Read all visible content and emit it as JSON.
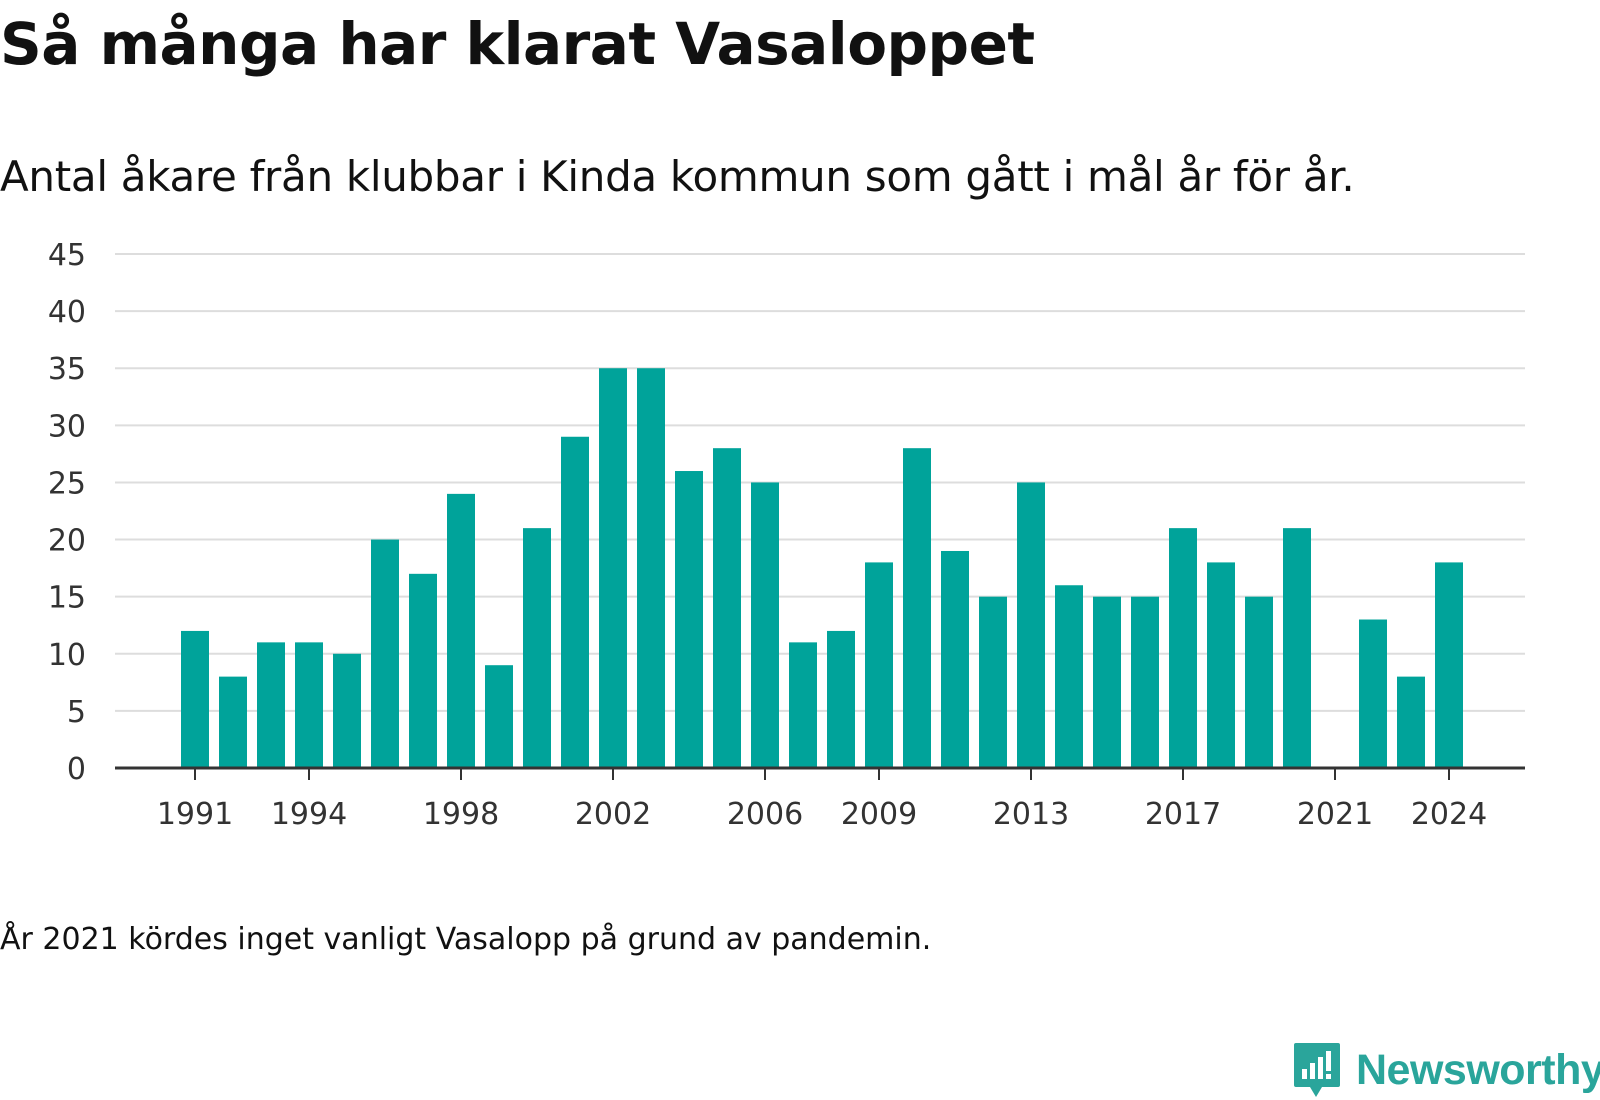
{
  "header": {
    "title": "Så många har klarat Vasaloppet",
    "subtitle": "Antal åkare från klubbar i Kinda kommun som gått i mål år för år."
  },
  "footer": {
    "note": "År 2021 kördes inget vanligt Vasalopp på grund av pandemin.",
    "brand": "Newsworthy"
  },
  "colors": {
    "bar": "#00a39a",
    "grid": "#dddddd",
    "axis": "#333333",
    "brand": "#2aa59b"
  },
  "chart_data": {
    "type": "bar",
    "categories": [
      1991,
      1992,
      1993,
      1994,
      1995,
      1996,
      1997,
      1998,
      1999,
      2000,
      2001,
      2002,
      2003,
      2004,
      2005,
      2006,
      2007,
      2008,
      2009,
      2010,
      2011,
      2012,
      2013,
      2014,
      2015,
      2016,
      2017,
      2018,
      2019,
      2020,
      2021,
      2022,
      2023,
      2024
    ],
    "values": [
      12,
      8,
      11,
      11,
      10,
      20,
      17,
      24,
      9,
      21,
      29,
      35,
      35,
      26,
      28,
      25,
      11,
      12,
      18,
      28,
      19,
      15,
      25,
      16,
      15,
      15,
      21,
      18,
      15,
      21,
      null,
      13,
      8,
      18
    ],
    "x_tick_labels": [
      "1991",
      "1994",
      "1998",
      "2002",
      "2006",
      "2009",
      "2013",
      "2017",
      "2021",
      "2024"
    ],
    "y_ticks": [
      0,
      5,
      10,
      15,
      20,
      25,
      30,
      35,
      40,
      45
    ],
    "ylim": [
      0,
      45
    ],
    "grid": true,
    "legend": "none"
  }
}
